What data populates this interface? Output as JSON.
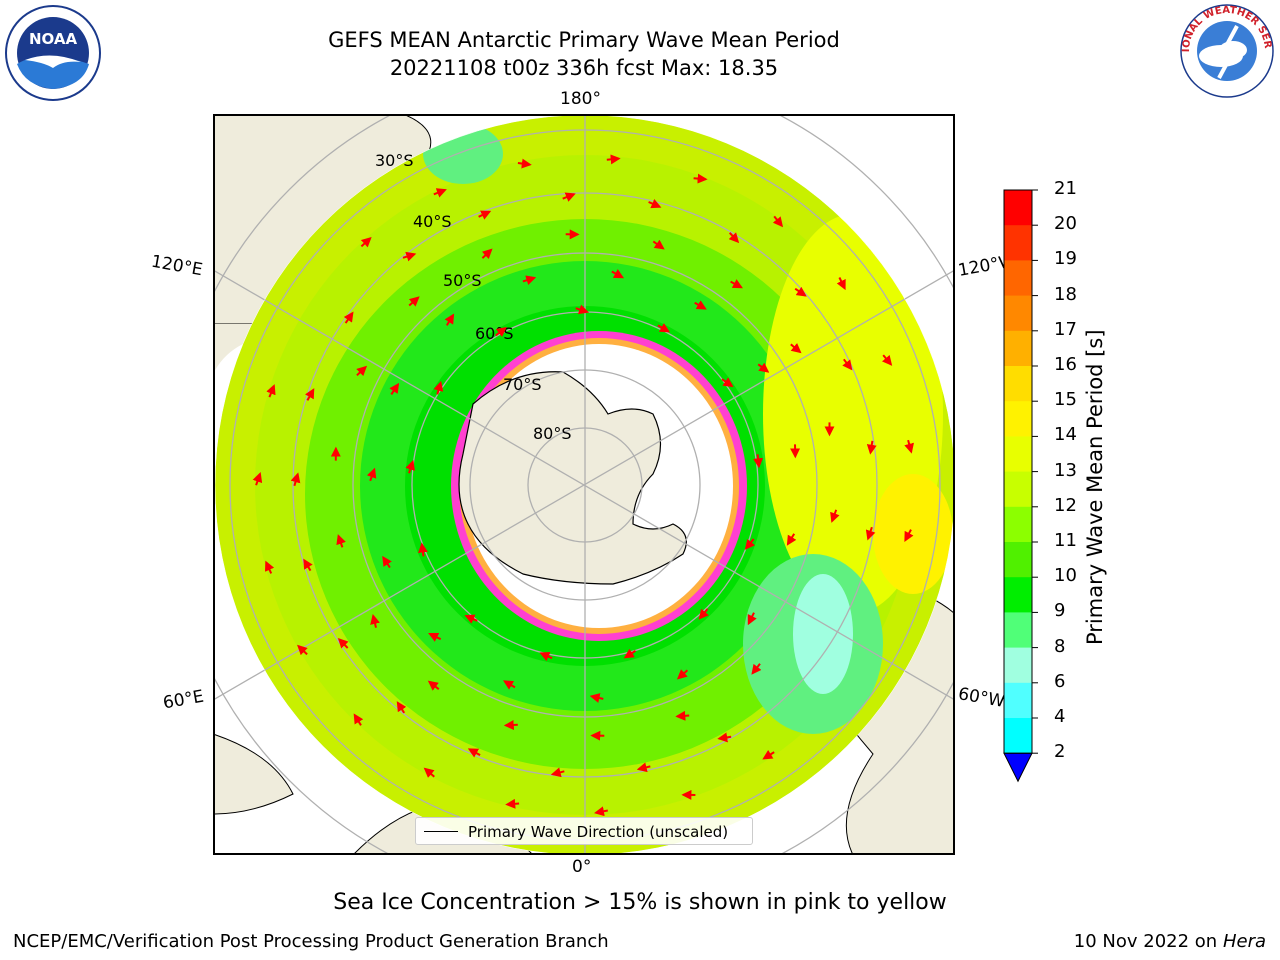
{
  "header": {
    "title_line1": "GEFS MEAN Antarctic Primary Wave Mean Period",
    "title_line2": "20221108 t00z 336h fcst   Max: 18.35"
  },
  "logos": {
    "left": {
      "name": "noaa-logo",
      "text": "NOAA"
    },
    "right": {
      "name": "nws-logo",
      "text": "NATIONAL WEATHER SERVICE"
    }
  },
  "map": {
    "projection": "south-polar-stereographic",
    "lat_labels": [
      "30°S",
      "40°S",
      "50°S",
      "60°S",
      "70°S",
      "80°S"
    ],
    "lon_labels": {
      "top": "180°",
      "bottom": "0°",
      "left_upper": "120°E",
      "left_lower": "60°E",
      "right_upper": "120°W",
      "right_lower": "60°W"
    },
    "legend": "Primary Wave Direction (unscaled)",
    "colors": {
      "land": "#efecdc",
      "sea_ice_white": "#ffffff",
      "arrow": "#ff0000",
      "gridline": "#b0b0b0"
    }
  },
  "colorbar": {
    "label": "Primary Wave Mean Period [s]",
    "ticks": [
      "21",
      "20",
      "19",
      "18",
      "17",
      "16",
      "15",
      "14",
      "13",
      "12",
      "11",
      "10",
      "9",
      "8",
      "6",
      "4",
      "2"
    ],
    "colors": [
      "#ff0000",
      "#ff3300",
      "#ff6600",
      "#ff8800",
      "#ffb000",
      "#ffdd00",
      "#fff200",
      "#e8ff00",
      "#c8ff00",
      "#8cff00",
      "#50f000",
      "#00ee00",
      "#50ff78",
      "#a0ffe0",
      "#50ffff",
      "#00ffff",
      "#00d0ff",
      "#0080ff",
      "#0000ff"
    ]
  },
  "footer": {
    "subtitle": "Sea Ice Concentration > 15% is shown in pink to yellow",
    "credit": "NCEP/EMC/Verification Post Processing Product Generation Branch",
    "date": "10 Nov 2022 on",
    "machine": "Hera"
  }
}
